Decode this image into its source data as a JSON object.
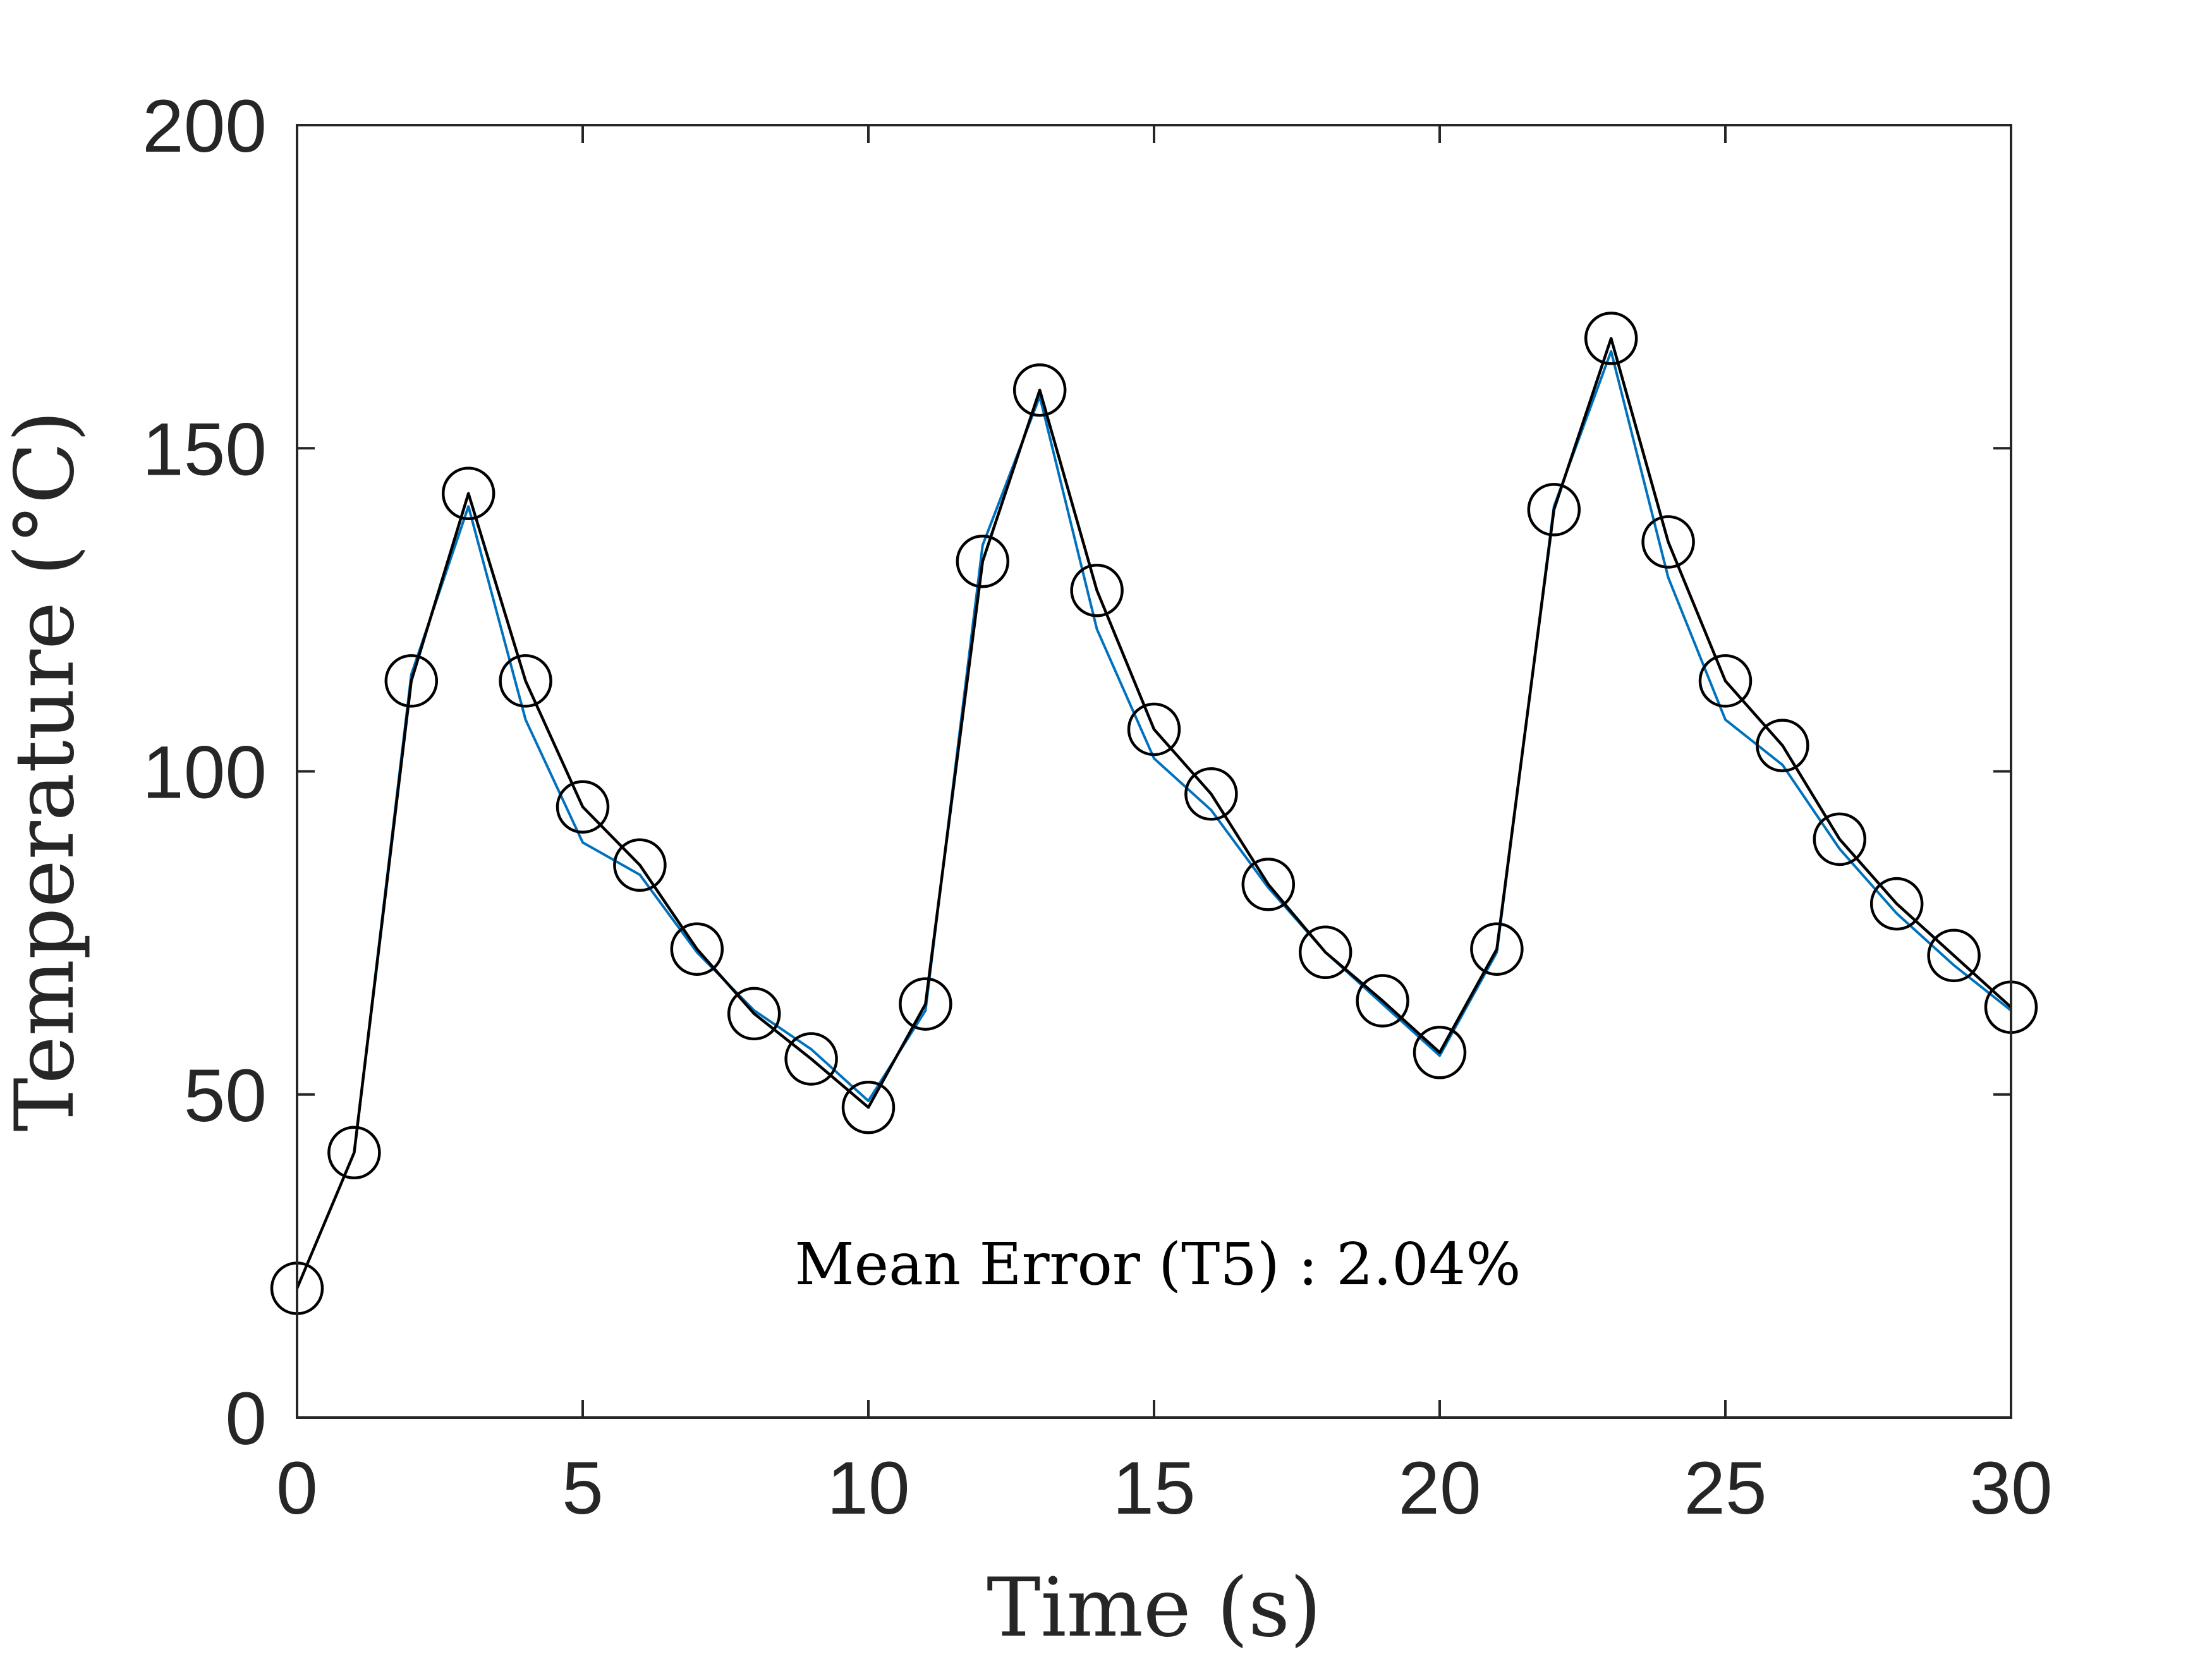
{
  "chart_data": {
    "type": "line",
    "xlabel": "Time (s)",
    "ylabel": "Temperature (°C)",
    "xlim": [
      0,
      30
    ],
    "ylim": [
      0,
      200
    ],
    "xticks": [
      0,
      5,
      10,
      15,
      20,
      25,
      30
    ],
    "yticks": [
      0,
      50,
      100,
      150,
      200
    ],
    "grid": false,
    "annotation": "Mean Error (T5) : 2.04%",
    "series": [
      {
        "style": "line",
        "color": "#0072BD",
        "x": [
          0,
          1,
          2,
          3,
          4,
          5,
          6,
          7,
          8,
          9,
          10,
          11,
          12,
          13,
          14,
          15,
          16,
          17,
          18,
          19,
          20,
          21,
          22,
          23,
          24,
          25,
          26,
          27,
          28,
          29,
          30
        ],
        "y": [
          20,
          41,
          115,
          141,
          108,
          89,
          84,
          72,
          63,
          57,
          49,
          63,
          135,
          158,
          122,
          102,
          94,
          82,
          72,
          64,
          56,
          72,
          141,
          165,
          130,
          108,
          101,
          88,
          78,
          70,
          63
        ]
      },
      {
        "style": "line-circle-markers",
        "color": "#000000",
        "x": [
          0,
          1,
          2,
          3,
          4,
          5,
          6,
          7,
          8,
          9,
          10,
          11,
          12,
          13,
          14,
          15,
          16,
          17,
          18,
          19,
          20,
          21,
          22,
          23,
          24,
          25,
          26,
          27,
          28,
          29,
          30
        ],
        "y": [
          20,
          41,
          114,
          143,
          114,
          94.5,
          85.5,
          72.5,
          62.5,
          55.5,
          48,
          64,
          132.5,
          159,
          128,
          106.5,
          96.5,
          82.5,
          72,
          64.5,
          56.5,
          72.5,
          140.5,
          167,
          135.5,
          114,
          104,
          89.5,
          79.5,
          71.5,
          63.5
        ]
      }
    ]
  }
}
